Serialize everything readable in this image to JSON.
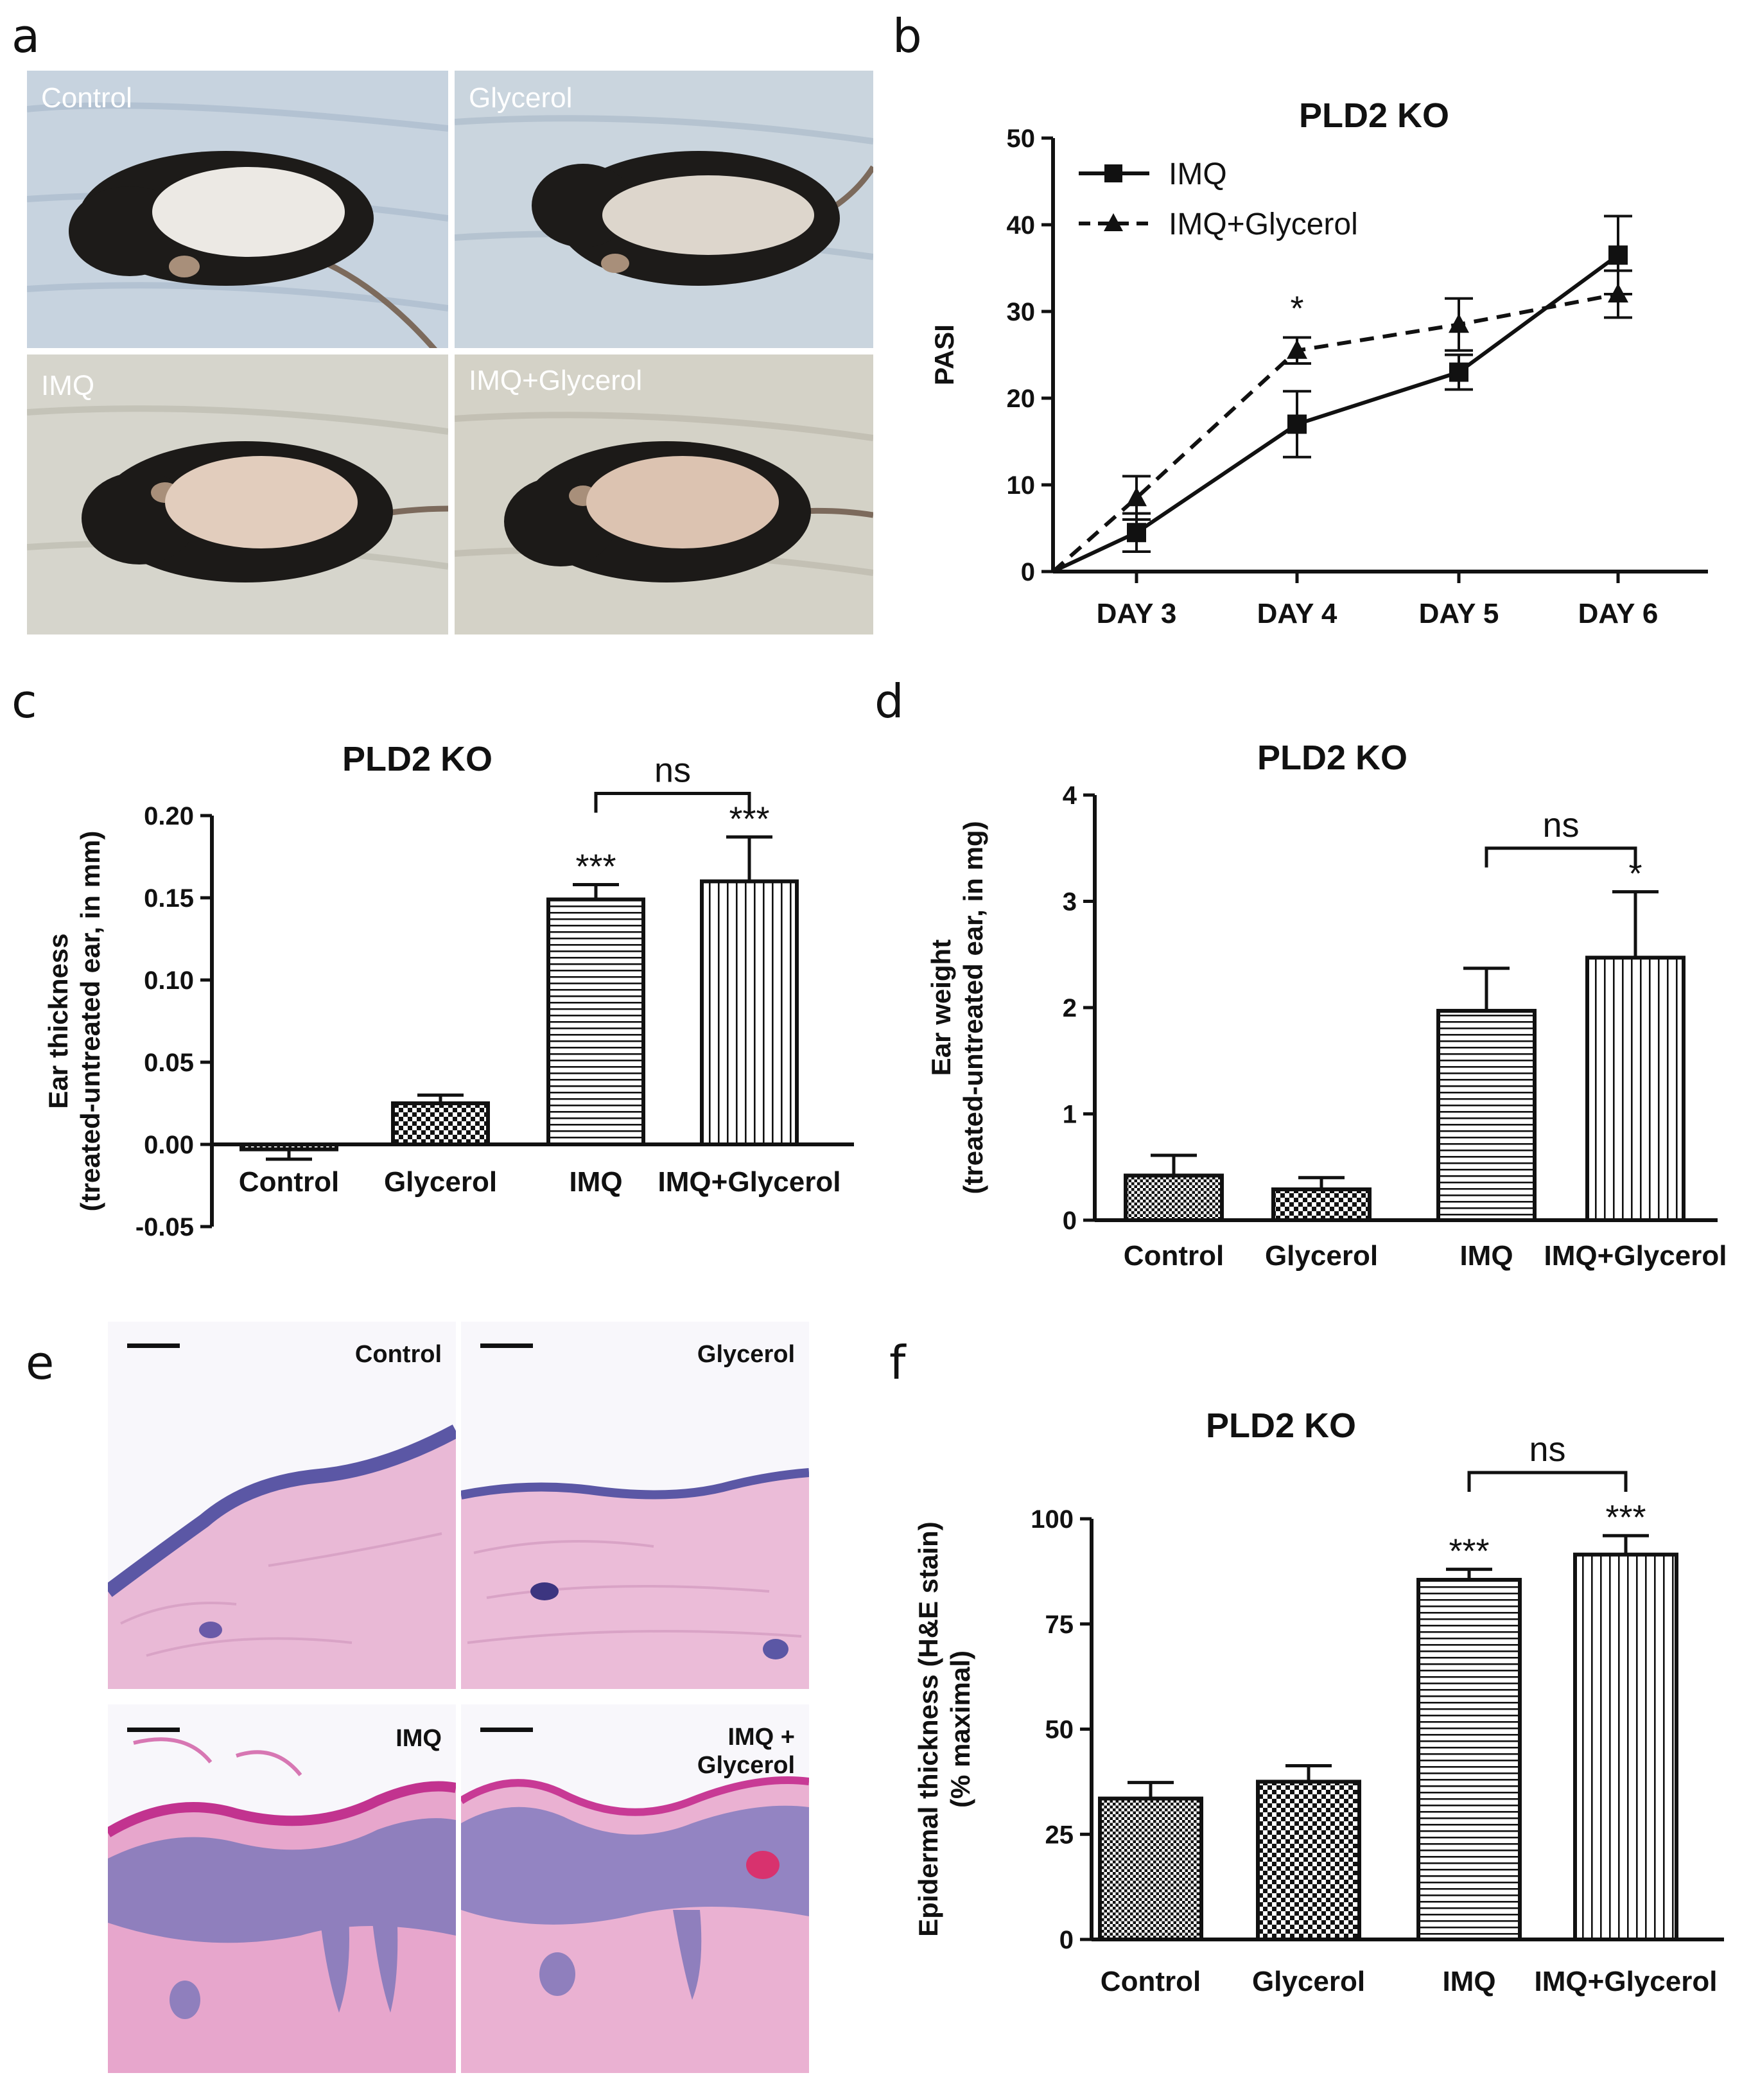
{
  "panels": {
    "a": {
      "letter": "a",
      "photos": [
        {
          "label": "Control",
          "fur": "#1d1b19",
          "shaved": "#ece9e4",
          "bg": "#c6d2de"
        },
        {
          "label": "Glycerol",
          "fur": "#1d1b19",
          "shaved": "#ddd6cc",
          "bg": "#c9d4dd"
        },
        {
          "label": "IMQ",
          "fur": "#1c1a18",
          "shaved": "#e2cdbd",
          "bg": "#d5d4cb"
        },
        {
          "label": "IMQ+Glycerol",
          "fur": "#1c1a18",
          "shaved": "#dcc3b1",
          "bg": "#d3d1c6"
        }
      ]
    },
    "b": {
      "letter": "b"
    },
    "c": {
      "letter": "c"
    },
    "d": {
      "letter": "d"
    },
    "e": {
      "letter": "e",
      "photos": [
        {
          "label": "Control"
        },
        {
          "label": "Glycerol"
        },
        {
          "label": "IMQ"
        },
        {
          "label": "IMQ +\nGlycerol"
        }
      ]
    },
    "f": {
      "letter": "f"
    }
  },
  "colors": {
    "ink": "#111111",
    "he_pink": "#e9a9cf",
    "he_purple": "#6a5aa8",
    "he_bg": "#f8f7fb"
  },
  "chart_data": [
    {
      "id": "b",
      "type": "line",
      "title": "PLD2 KO",
      "xlabel": "",
      "ylabel": "PASI",
      "categories": [
        "DAY 3",
        "DAY 4",
        "DAY 5",
        "DAY 6"
      ],
      "ylim": [
        0,
        50
      ],
      "yticks": [
        0,
        10,
        20,
        30,
        40,
        50
      ],
      "series": [
        {
          "name": "IMQ",
          "marker": "square",
          "dashed": false,
          "origin": 0,
          "values": [
            4.5,
            17,
            23,
            36.5
          ],
          "errors": [
            2.2,
            3.8,
            2.0,
            4.5
          ]
        },
        {
          "name": "IMQ+Glycerol",
          "marker": "triangle",
          "dashed": true,
          "origin": 0,
          "values": [
            8.5,
            25.5,
            28.5,
            32
          ],
          "errors": [
            2.5,
            1.5,
            3.0,
            2.7
          ]
        }
      ],
      "annotations": [
        {
          "text": "*",
          "category": "DAY 4",
          "y": 29
        }
      ]
    },
    {
      "id": "c",
      "type": "bar",
      "title": "PLD2 KO",
      "ylabel": [
        "Ear thickness",
        "(treated-untreated ear, in mm)"
      ],
      "categories": [
        "Control",
        "Glycerol",
        "IMQ",
        "IMQ+Glycerol"
      ],
      "values": [
        -0.003,
        0.025,
        0.149,
        0.16
      ],
      "errors": [
        0.006,
        0.005,
        0.009,
        0.027
      ],
      "patterns": [
        "grid",
        "checker",
        "hlines",
        "vlines"
      ],
      "ylim": [
        -0.05,
        0.2
      ],
      "yticks": [
        -0.05,
        0.0,
        0.05,
        0.1,
        0.15,
        0.2
      ],
      "yticklabels": [
        "-0.05",
        "0.00",
        "0.05",
        "0.10",
        "0.15",
        "0.20"
      ],
      "stars": [
        "",
        "",
        "***",
        "***"
      ],
      "bracket": {
        "from": 2,
        "to": 3,
        "label": "ns",
        "y": 0.2135
      }
    },
    {
      "id": "d",
      "type": "bar",
      "title": "PLD2 KO",
      "ylabel": [
        "Ear weight",
        "(treated-untreated ear, in mg)"
      ],
      "categories": [
        "Control",
        "Glycerol",
        "IMQ",
        "IMQ+Glycerol"
      ],
      "values": [
        0.42,
        0.29,
        1.97,
        2.47
      ],
      "errors": [
        0.19,
        0.11,
        0.4,
        0.62
      ],
      "patterns": [
        "grid",
        "checker",
        "hlines",
        "vlines"
      ],
      "ylim": [
        0,
        4
      ],
      "yticks": [
        0,
        1,
        2,
        3,
        4
      ],
      "yticklabels": [
        "0",
        "1",
        "2",
        "3",
        "4"
      ],
      "stars": [
        "",
        "",
        "",
        "*"
      ],
      "bracket": {
        "from": 2,
        "to": 3,
        "label": "ns",
        "y": 3.5
      }
    },
    {
      "id": "f",
      "type": "bar",
      "title": "PLD2 KO",
      "ylabel": [
        "Epidermal thickness (H&E stain)",
        "(% maximal)"
      ],
      "categories": [
        "Control",
        "Glycerol",
        "IMQ",
        "IMQ+Glycerol"
      ],
      "values": [
        33.5,
        37.5,
        85.5,
        91.5
      ],
      "errors": [
        3.8,
        3.8,
        2.5,
        4.5
      ],
      "patterns": [
        "grid",
        "checker",
        "hlines",
        "vlines"
      ],
      "ylim": [
        0,
        100
      ],
      "yticks": [
        0,
        25,
        50,
        75,
        100
      ],
      "yticklabels": [
        "0",
        "25",
        "50",
        "75",
        "100"
      ],
      "stars": [
        "",
        "",
        "***",
        "***"
      ],
      "bracket": {
        "from": 2,
        "to": 3,
        "label": "ns",
        "y": 111
      }
    }
  ]
}
